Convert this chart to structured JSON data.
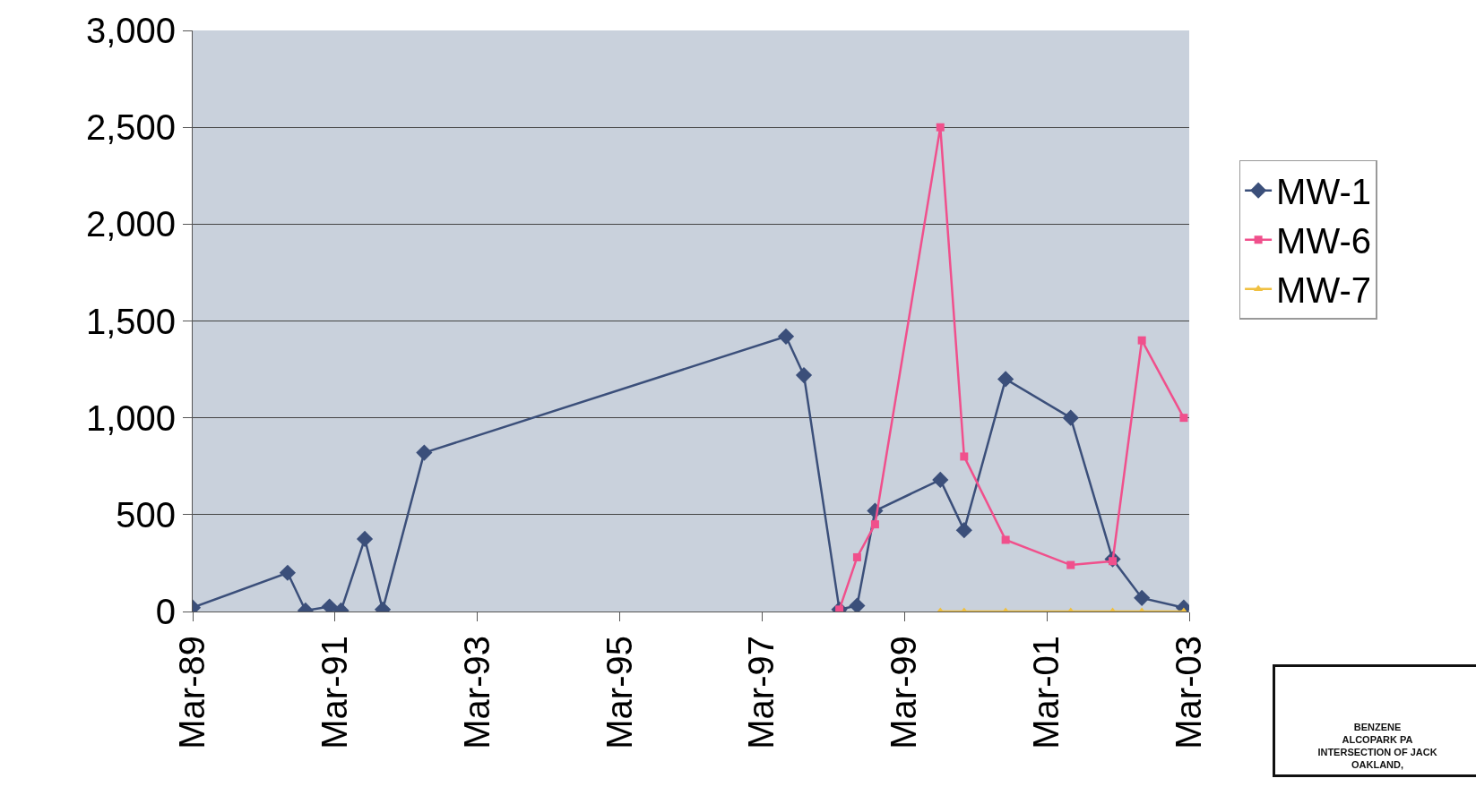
{
  "chart_data": {
    "type": "line",
    "xlim": [
      "1989-03",
      "2003-03"
    ],
    "xticks": [
      {
        "value": "1989-03",
        "label": "Mar-89"
      },
      {
        "value": "1991-03",
        "label": "Mar-91"
      },
      {
        "value": "1993-03",
        "label": "Mar-93"
      },
      {
        "value": "1995-03",
        "label": "Mar-95"
      },
      {
        "value": "1997-03",
        "label": "Mar-97"
      },
      {
        "value": "1999-03",
        "label": "Mar-99"
      },
      {
        "value": "2001-03",
        "label": "Mar-01"
      },
      {
        "value": "2003-03",
        "label": "Mar-03"
      }
    ],
    "ylim": [
      0,
      3000
    ],
    "yticks": [
      {
        "value": 0,
        "label": "0"
      },
      {
        "value": 500,
        "label": "500"
      },
      {
        "value": 1000,
        "label": "1,000"
      },
      {
        "value": 1500,
        "label": "1,500"
      },
      {
        "value": 2000,
        "label": "2,000"
      },
      {
        "value": 2500,
        "label": "2,500"
      },
      {
        "value": 3000,
        "label": "3,000"
      }
    ],
    "grid": "y",
    "legend": "right",
    "line_style": "solid",
    "series": [
      {
        "name": "MW-1",
        "color": "#3b4f7a",
        "marker": "diamond",
        "x": [
          "1989-03",
          "1990-07",
          "1990-10",
          "1991-02",
          "1991-04",
          "1991-08",
          "1991-11",
          "1992-06",
          "1997-07",
          "1997-10",
          "1998-04",
          "1998-07",
          "1998-10",
          "1999-09",
          "2000-01",
          "2000-08",
          "2001-07",
          "2002-02",
          "2002-07",
          "2003-02"
        ],
        "values": [
          20,
          200,
          5,
          25,
          5,
          375,
          10,
          820,
          1420,
          1220,
          10,
          30,
          520,
          680,
          420,
          1200,
          1000,
          270,
          70,
          20
        ]
      },
      {
        "name": "MW-6",
        "color": "#f0508c",
        "marker": "square",
        "x": [
          "1998-04",
          "1998-07",
          "1998-10",
          "1999-09",
          "2000-01",
          "2000-08",
          "2001-07",
          "2002-02",
          "2002-07",
          "2003-02"
        ],
        "values": [
          10,
          280,
          450,
          2500,
          800,
          370,
          240,
          260,
          1400,
          1000
        ]
      },
      {
        "name": "MW-7",
        "color": "#f0c040",
        "marker": "triangle",
        "x": [
          "1999-09",
          "2000-01",
          "2000-08",
          "2001-07",
          "2002-02",
          "2002-07",
          "2003-02"
        ],
        "values": [
          0,
          0,
          0,
          0,
          0,
          0,
          0
        ]
      }
    ],
    "annotations": [
      "BENZENE",
      "ALCOPARK PA",
      "INTERSECTION OF JACK",
      "OAKLAND,"
    ]
  }
}
